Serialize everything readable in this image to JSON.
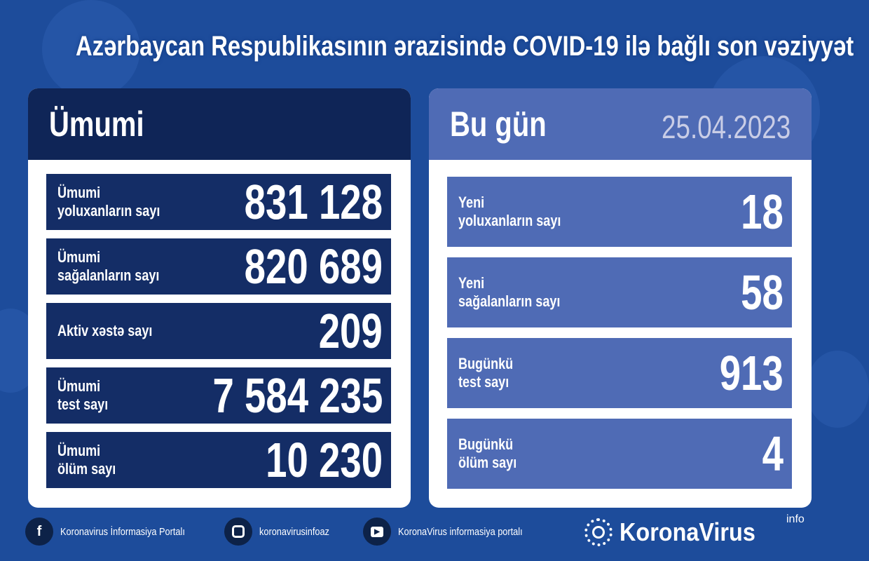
{
  "title": "Azərbaycan Respublikasının ərazisində COVID-19 ilə bağlı son vəziyyət",
  "colors": {
    "background": "#1d4c9b",
    "left_header": "#0f2557",
    "left_rows": "#142d66",
    "right_rows": "#4f6bb5",
    "date": "#c9cde6"
  },
  "total": {
    "heading": "Ümumi",
    "rows": [
      {
        "label": "Ümumi\nyoluxanların sayı",
        "value": "831 128"
      },
      {
        "label": "Ümumi\nsağalanların sayı",
        "value": "820 689"
      },
      {
        "label": "Aktiv xəstə sayı",
        "value": "209"
      },
      {
        "label": "Ümumi\ntest sayı",
        "value": "7 584 235"
      },
      {
        "label": "Ümumi\nölüm sayı",
        "value": "10 230"
      }
    ]
  },
  "today": {
    "heading": "Bu gün",
    "date": "25.04.2023",
    "rows": [
      {
        "label": "Yeni\nyoluxanların sayı",
        "value": "18"
      },
      {
        "label": "Yeni\nsağalanların sayı",
        "value": "58"
      },
      {
        "label": "Bugünkü\ntest sayı",
        "value": "913"
      },
      {
        "label": "Bugünkü\nölüm sayı",
        "value": "4"
      }
    ]
  },
  "footer": {
    "facebook": "Koronavirus İnformasiya Portalı",
    "instagram": "koronavirusinfoaz",
    "youtube": "KoronaVirus informasiya portalı",
    "brand": "KoronaVirus",
    "brand_sup": "info"
  }
}
